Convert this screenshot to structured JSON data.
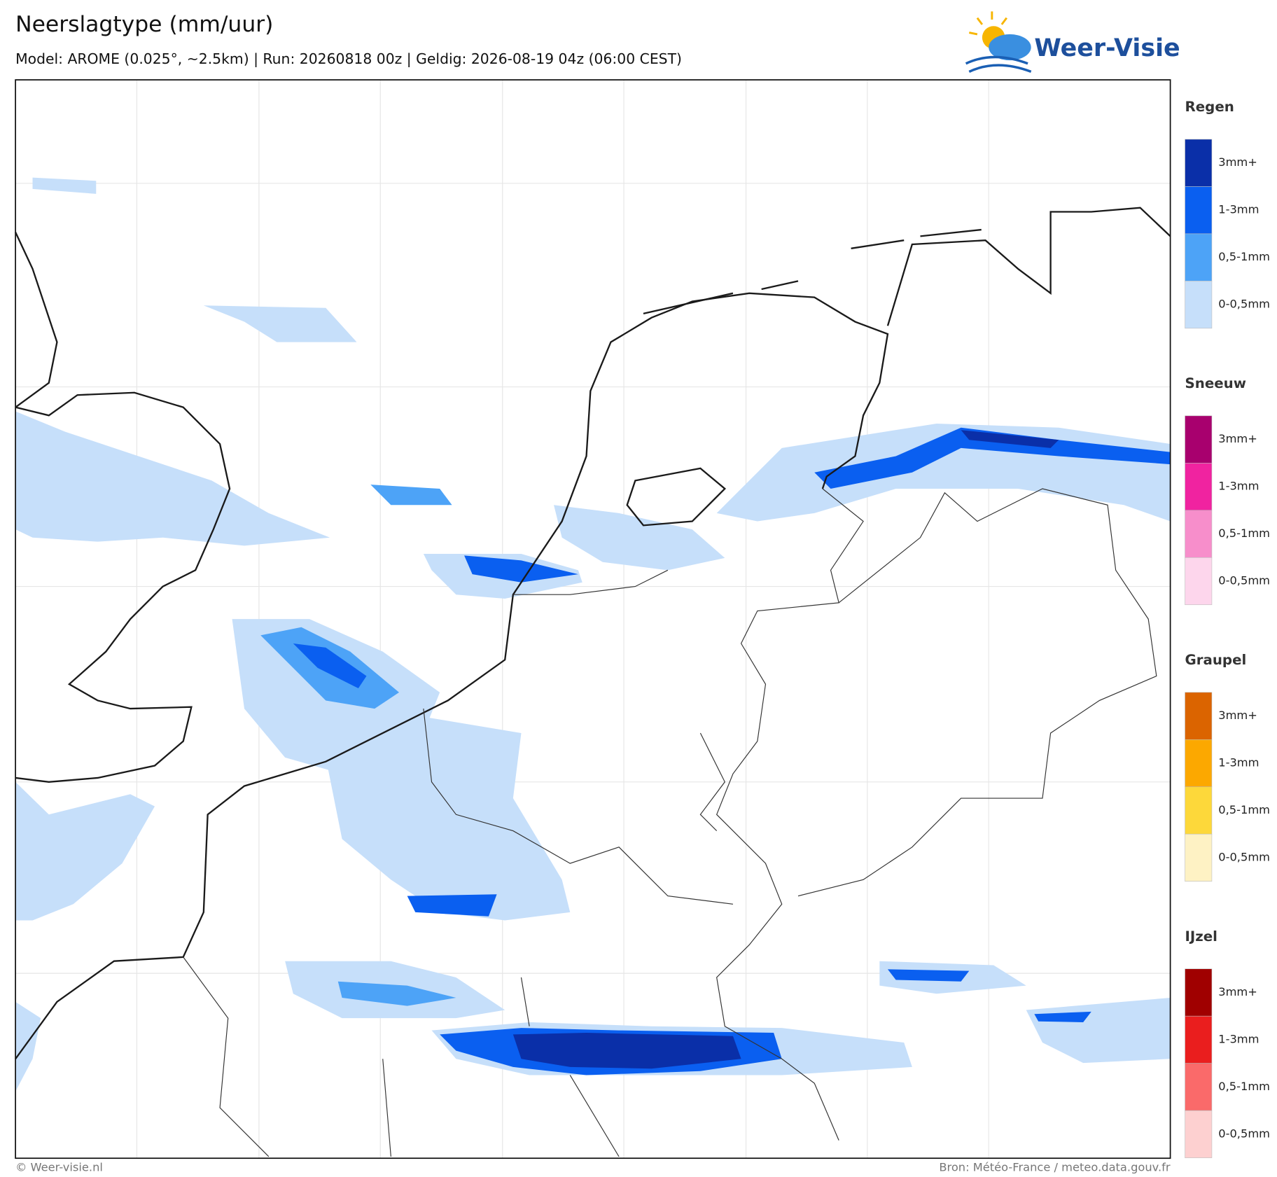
{
  "header": {
    "title": "Neerslagtype (mm/uur)",
    "subtitle": "Model: AROME (0.025°, ~2.5km)  |  Run: 20260818 00z  |  Geldig: 2026-08-19 04z (06:00 CEST)"
  },
  "logo": {
    "text": "Weer-Visie"
  },
  "legend": {
    "groups": [
      {
        "title": "Regen",
        "items": [
          {
            "label": "3mm+",
            "color": "#0a2fa8"
          },
          {
            "label": "1-3mm",
            "color": "#0a5ff0"
          },
          {
            "label": "0,5-1mm",
            "color": "#4da3f7"
          },
          {
            "label": "0-0,5mm",
            "color": "#c6dffa"
          }
        ]
      },
      {
        "title": "Sneeuw",
        "items": [
          {
            "label": "3mm+",
            "color": "#a8006e"
          },
          {
            "label": "1-3mm",
            "color": "#f023a0"
          },
          {
            "label": "0,5-1mm",
            "color": "#f78ecb"
          },
          {
            "label": "0-0,5mm",
            "color": "#fdd6ec"
          }
        ]
      },
      {
        "title": "Graupel",
        "items": [
          {
            "label": "3mm+",
            "color": "#db6400"
          },
          {
            "label": "1-3mm",
            "color": "#fca800"
          },
          {
            "label": "0,5-1mm",
            "color": "#fdd83a"
          },
          {
            "label": "0-0,5mm",
            "color": "#fef2c4"
          }
        ]
      },
      {
        "title": "IJzel",
        "items": [
          {
            "label": "3mm+",
            "color": "#a00000"
          },
          {
            "label": "1-3mm",
            "color": "#ea1e1e"
          },
          {
            "label": "0,5-1mm",
            "color": "#fa6a6a"
          },
          {
            "label": "0-0,5mm",
            "color": "#fdd0d0"
          }
        ]
      }
    ]
  },
  "footer": {
    "left": "© Weer-visie.nl",
    "right": "Bron: Météo-France / meteo.data.gouv.fr"
  }
}
